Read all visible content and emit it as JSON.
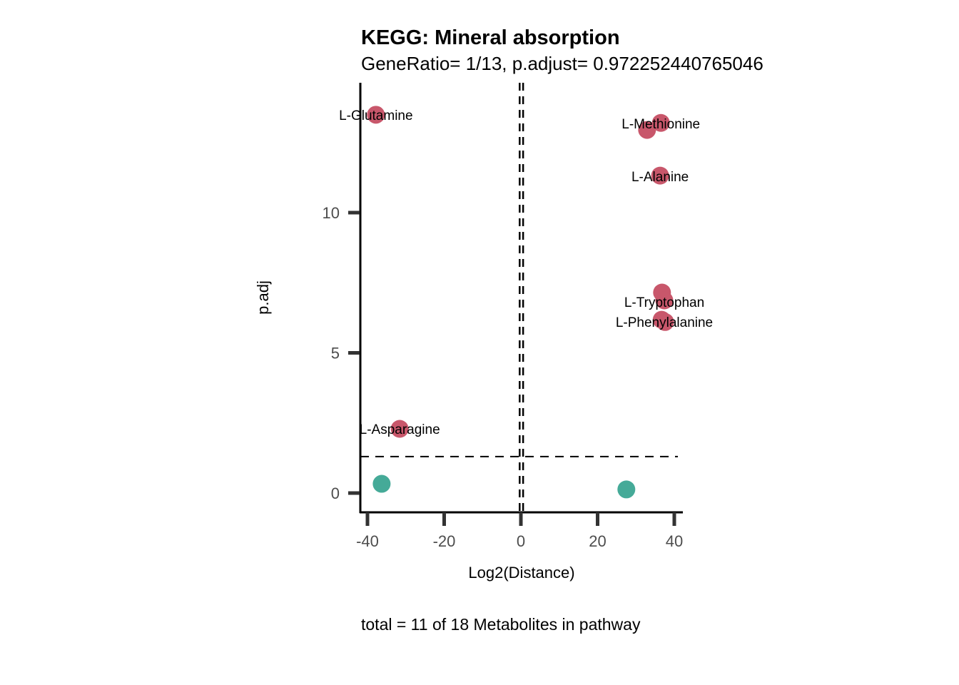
{
  "chart_data": {
    "type": "scatter",
    "title": "KEGG: Mineral absorption",
    "subtitle": "GeneRatio= 1/13, p.adjust= 0.972252440765046",
    "xlabel": "Log2(Distance)",
    "ylabel": "p.adj",
    "caption": "total = 11 of 18 Metabolites in pathway",
    "xlim": [
      -42,
      42
    ],
    "ylim": [
      -0.7,
      14.6
    ],
    "xticks": [
      -40,
      -20,
      0,
      20,
      40
    ],
    "xtick_labels": [
      "-40",
      "-20",
      "0",
      "20",
      "40"
    ],
    "yticks": [
      0,
      5,
      10
    ],
    "ytick_labels": [
      "0",
      "5",
      "10"
    ],
    "grid": false,
    "hline": 1.3,
    "vlines": [
      -0.32,
      0.58
    ],
    "colors": {
      "significant": "#C8576B",
      "not_significant": "#45AA98"
    },
    "points": [
      {
        "x": -37.8,
        "y": 13.49,
        "group": "significant"
      },
      {
        "x": 36.5,
        "y": 13.2,
        "group": "significant"
      },
      {
        "x": 32.9,
        "y": 12.95,
        "group": "significant"
      },
      {
        "x": 36.3,
        "y": 11.32,
        "group": "significant"
      },
      {
        "x": 36.8,
        "y": 7.15,
        "group": "significant"
      },
      {
        "x": 37.4,
        "y": 6.87,
        "group": "significant"
      },
      {
        "x": 36.7,
        "y": 6.18,
        "group": "significant"
      },
      {
        "x": 37.6,
        "y": 6.1,
        "group": "significant"
      },
      {
        "x": -31.6,
        "y": 2.29,
        "group": "significant"
      },
      {
        "x": -36.3,
        "y": 0.33,
        "group": "not_significant"
      },
      {
        "x": 27.5,
        "y": 0.13,
        "group": "not_significant"
      }
    ],
    "labels": [
      {
        "text": "L-Glutamine",
        "x": -37.8,
        "y": 13.49
      },
      {
        "text": "L-Methionine",
        "x": 36.5,
        "y": 13.2
      },
      {
        "text": "L-Alanine",
        "x": 36.3,
        "y": 11.32
      },
      {
        "text": "L-Tryptophan",
        "x": 37.4,
        "y": 6.87
      },
      {
        "text": "L-Phenylalanine",
        "x": 37.6,
        "y": 6.1
      },
      {
        "text": "L-Asparagine",
        "x": -31.6,
        "y": 2.29
      }
    ]
  }
}
